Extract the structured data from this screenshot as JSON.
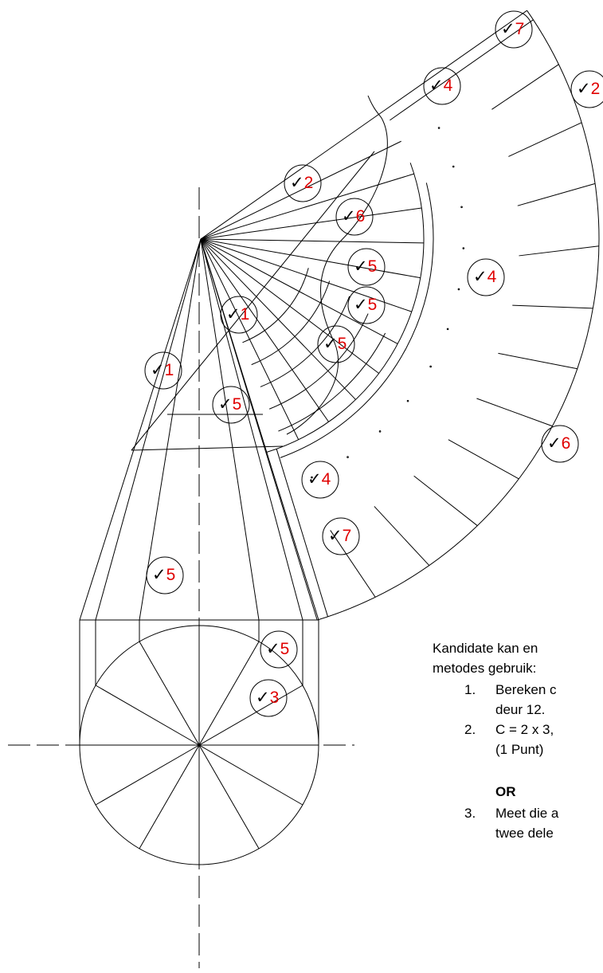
{
  "check": "✓",
  "marks": [
    {
      "number": "7"
    },
    {
      "number": "2"
    },
    {
      "number": "4"
    },
    {
      "number": "2"
    },
    {
      "number": "6"
    },
    {
      "number": "5"
    },
    {
      "number": "4"
    },
    {
      "number": "5"
    },
    {
      "number": "5"
    },
    {
      "number": "1"
    },
    {
      "number": "1"
    },
    {
      "number": "5"
    },
    {
      "number": "6"
    },
    {
      "number": "4"
    },
    {
      "number": "7"
    },
    {
      "number": "5"
    },
    {
      "number": "5"
    },
    {
      "number": "3"
    }
  ],
  "note": {
    "intro": [
      "Kandidate kan en",
      "metodes gebruik:"
    ],
    "items": [
      {
        "num": "1.",
        "lines": [
          "Bereken c",
          "deur 12."
        ]
      },
      {
        "num": "2.",
        "lines": [
          "C = 2 x 3,",
          "(1 Punt)"
        ]
      },
      {
        "num": "3.",
        "lines": [
          "Meet die a",
          "twee dele"
        ]
      }
    ],
    "or": "OR"
  }
}
